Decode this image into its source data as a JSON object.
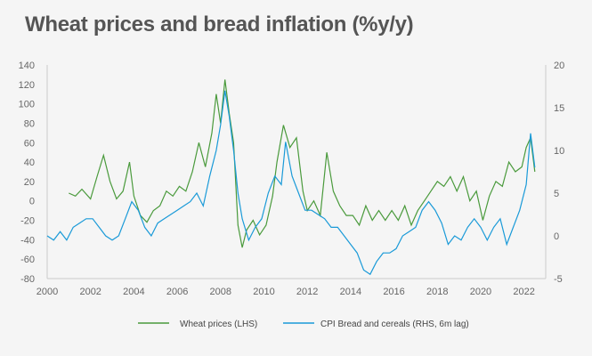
{
  "title": "Wheat prices and bread inflation (%y/y)",
  "colors": {
    "wheat": "#4a9a3c",
    "cpi": "#1a9ad8",
    "axis": "#cccccc",
    "text": "#666666"
  },
  "chart_data": {
    "type": "line",
    "title": "Wheat prices and bread inflation (%y/y)",
    "x_ticks": [
      "2000",
      "2002",
      "2004",
      "2006",
      "2008",
      "2010",
      "2012",
      "2014",
      "2016",
      "2018",
      "2020",
      "2022"
    ],
    "xlim": [
      2000,
      2023
    ],
    "y_left_ticks": [
      140,
      120,
      100,
      80,
      60,
      40,
      20,
      0,
      -20,
      -40,
      -60,
      -80
    ],
    "y_left_lim": [
      -80,
      140
    ],
    "y_right_ticks": [
      20,
      15,
      10,
      5,
      0,
      -5
    ],
    "y_right_lim": [
      -5,
      20
    ],
    "grid": false,
    "legend_position": "bottom",
    "series": [
      {
        "name": "Wheat prices (LHS)",
        "axis": "left",
        "x": [
          2001.0,
          2001.3,
          2001.6,
          2002.0,
          2002.3,
          2002.6,
          2002.9,
          2003.2,
          2003.5,
          2003.8,
          2004.0,
          2004.3,
          2004.6,
          2004.9,
          2005.2,
          2005.5,
          2005.8,
          2006.1,
          2006.4,
          2006.7,
          2007.0,
          2007.3,
          2007.6,
          2007.8,
          2008.0,
          2008.2,
          2008.4,
          2008.6,
          2008.8,
          2009.0,
          2009.2,
          2009.5,
          2009.8,
          2010.1,
          2010.4,
          2010.6,
          2010.9,
          2011.2,
          2011.5,
          2011.8,
          2012.0,
          2012.3,
          2012.6,
          2012.9,
          2013.2,
          2013.5,
          2013.8,
          2014.1,
          2014.4,
          2014.7,
          2015.0,
          2015.3,
          2015.6,
          2015.9,
          2016.2,
          2016.5,
          2016.8,
          2017.1,
          2017.4,
          2017.7,
          2018.0,
          2018.3,
          2018.6,
          2018.9,
          2019.2,
          2019.5,
          2019.8,
          2020.1,
          2020.4,
          2020.7,
          2021.0,
          2021.3,
          2021.6,
          2021.9,
          2022.1,
          2022.3,
          2022.5
        ],
        "values": [
          8,
          5,
          12,
          2,
          25,
          47,
          20,
          2,
          10,
          40,
          5,
          -15,
          -22,
          -10,
          -5,
          10,
          5,
          15,
          10,
          30,
          60,
          35,
          70,
          110,
          80,
          125,
          90,
          60,
          -25,
          -48,
          -30,
          -20,
          -35,
          -25,
          5,
          40,
          78,
          55,
          65,
          10,
          -10,
          0,
          -15,
          50,
          10,
          -5,
          -15,
          -15,
          -25,
          -5,
          -20,
          -10,
          -20,
          -10,
          -20,
          -5,
          -25,
          -10,
          0,
          10,
          20,
          15,
          25,
          10,
          25,
          0,
          10,
          -20,
          5,
          20,
          15,
          40,
          30,
          35,
          55,
          65,
          30
        ]
      },
      {
        "name": "CPI Bread and cereals (RHS, 6m lag)",
        "axis": "right",
        "x": [
          2000.0,
          2000.3,
          2000.6,
          2000.9,
          2001.2,
          2001.5,
          2001.8,
          2002.1,
          2002.4,
          2002.7,
          2003.0,
          2003.3,
          2003.6,
          2003.9,
          2004.2,
          2004.5,
          2004.8,
          2005.1,
          2005.4,
          2005.7,
          2006.0,
          2006.3,
          2006.6,
          2006.9,
          2007.2,
          2007.5,
          2007.8,
          2008.0,
          2008.2,
          2008.4,
          2008.6,
          2008.8,
          2009.0,
          2009.3,
          2009.6,
          2009.9,
          2010.2,
          2010.5,
          2010.8,
          2011.0,
          2011.3,
          2011.6,
          2011.9,
          2012.2,
          2012.5,
          2012.8,
          2013.1,
          2013.4,
          2013.7,
          2014.0,
          2014.3,
          2014.6,
          2014.9,
          2015.2,
          2015.5,
          2015.8,
          2016.1,
          2016.4,
          2016.7,
          2017.0,
          2017.3,
          2017.6,
          2017.9,
          2018.2,
          2018.5,
          2018.8,
          2019.1,
          2019.4,
          2019.7,
          2020.0,
          2020.3,
          2020.6,
          2020.9,
          2021.2,
          2021.5,
          2021.8,
          2022.1,
          2022.3,
          2022.5
        ],
        "values": [
          0,
          -0.5,
          0.5,
          -0.5,
          1,
          1.5,
          2,
          2,
          1,
          0,
          -0.5,
          0,
          2,
          4,
          3,
          1,
          0,
          1.5,
          2,
          2.5,
          3,
          3.5,
          4,
          5,
          3.5,
          7,
          10,
          13,
          17,
          14,
          10,
          5,
          2,
          -0.5,
          1,
          2,
          5,
          7,
          6,
          11,
          7,
          5,
          3,
          3,
          2.5,
          2,
          1,
          1,
          0,
          -1,
          -2,
          -4,
          -4.5,
          -3,
          -2,
          -2,
          -1.5,
          0,
          0.5,
          1,
          3,
          4,
          3,
          1.5,
          -1,
          0,
          -0.5,
          1,
          2,
          1,
          -0.5,
          1,
          2,
          -1,
          1,
          3,
          6,
          12,
          8
        ]
      }
    ]
  }
}
